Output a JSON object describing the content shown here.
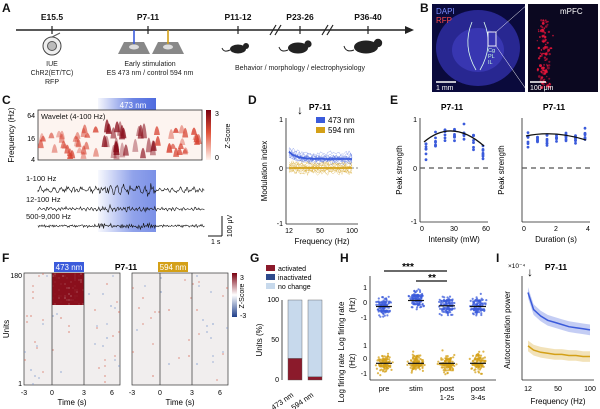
{
  "colors": {
    "blue": "#3b5bdb",
    "gold": "#d4a017",
    "activated": "#8b1a2b",
    "inactivated": "#2e4a8c",
    "nochange": "#c7d9ec",
    "red": "#c0392b",
    "dark": "#222222"
  },
  "panels": [
    "A",
    "B",
    "C",
    "D",
    "E",
    "F",
    "G",
    "H",
    "I"
  ],
  "timeline": {
    "stages": [
      {
        "label": "E15.5",
        "sub": [
          "IUE",
          "ChR2(ET/TC)",
          "RFP"
        ]
      },
      {
        "label": "P7-11",
        "sub": [
          "Early stimulation",
          "ES 473 nm / control 594 nm"
        ]
      },
      {
        "label": "P11-12",
        "sub": []
      },
      {
        "label": "P23-26",
        "sub": [
          "Behavior / morphology / electrophysiology"
        ]
      },
      {
        "label": "P36-40",
        "sub": []
      }
    ]
  },
  "histology": {
    "dapi": "DAPI",
    "rfp": "RFP",
    "mpfc": "mPFC",
    "regions": [
      "Cg",
      "PL",
      "IL"
    ],
    "scale1": "1 mm",
    "scale2": "100 μm"
  },
  "wavelet": {
    "stim_label": "473 nm",
    "inner_label": "Wavelet (4-100 Hz)",
    "ylabel": "Frequency (Hz)",
    "yticks": [
      "64",
      "16",
      "4"
    ],
    "cbar_label": "Z-Score",
    "cbar_ticks": [
      "3",
      "0"
    ],
    "traces": [
      "1-100 Hz",
      "12-100 Hz",
      "500-9,000 Hz"
    ],
    "scale_v": "100 μV",
    "scale_t": "1 s"
  },
  "mod_index": {
    "title": "P7-11",
    "ylabel": "Modulation index",
    "xlabel": "Frequency (Hz)",
    "xticks": [
      "12",
      "50",
      "100"
    ],
    "yticks": [
      "1",
      "0",
      "-1"
    ],
    "legend": [
      "473 nm",
      "594 nm"
    ]
  },
  "peak": {
    "title_left": "P7-11",
    "title_right": "P7-11",
    "ylabel": "Peak strength",
    "xlabel_left": "Intensity (mW)",
    "xlabel_right": "Duration (s)",
    "xticks_left": [
      "0",
      "30",
      "60"
    ],
    "xticks_right": [
      "0",
      "2",
      "4"
    ],
    "yticks": [
      "1",
      "0",
      "-1"
    ]
  },
  "units_raster": {
    "title": "P7-11",
    "label_473": "473 nm",
    "label_594": "594 nm",
    "ylabel": "Units",
    "yticks": [
      "180",
      "1"
    ],
    "xlabel": "Time (s)",
    "xticks": [
      "-3",
      "0",
      "3",
      "6"
    ],
    "cbar_label": "Z-Score",
    "cbar_ticks": [
      "3",
      "-3"
    ]
  },
  "chart_data": [
    {
      "type": "bar",
      "panel": "G",
      "categories": [
        "473 nm",
        "594 nm"
      ],
      "series": [
        {
          "name": "activated",
          "values": [
            27,
            4
          ]
        },
        {
          "name": "inactivated",
          "values": [
            0,
            0
          ]
        },
        {
          "name": "no change",
          "values": [
            73,
            96
          ]
        }
      ],
      "ylabel": "Units (%)",
      "ylim": [
        0,
        100
      ],
      "yticks": [
        "100",
        "50",
        "0"
      ]
    },
    {
      "type": "scatter",
      "panel": "H",
      "categories": [
        "pre",
        "stim",
        "post 1-2s",
        "post 3-4s"
      ],
      "ylabel": "Log firing rate Log firing rate (Hz) (Hz)",
      "ylabel_top": "Log firing rate",
      "ylabel_bottom": "Log firing rate",
      "yunit": "(Hz)",
      "yticks_top": [
        "1",
        "0",
        "-1"
      ],
      "yticks_bottom": [
        "1",
        "0",
        "-1"
      ],
      "series": [
        {
          "name": "473 nm",
          "median": [
            -0.1,
            0.3,
            -0.05,
            -0.1
          ]
        },
        {
          "name": "594 nm",
          "median": [
            -0.15,
            -0.15,
            -0.15,
            -0.15
          ]
        }
      ],
      "sig": [
        "***",
        "**"
      ]
    },
    {
      "type": "line",
      "panel": "I",
      "title": "P7-11",
      "ylabel": "Autocorrelation power",
      "yscale": "×10⁻⁴",
      "xlabel": "Frequency (Hz)",
      "xticks": [
        "12",
        "50",
        "100"
      ],
      "series": [
        {
          "name": "473 nm",
          "x": [
            12,
            20,
            30,
            40,
            50,
            60,
            70,
            80,
            90,
            100
          ],
          "y": [
            5.6,
            4.8,
            4.5,
            4.3,
            4.2,
            4.1,
            4.0,
            3.95,
            3.9,
            3.85
          ]
        },
        {
          "name": "594 nm",
          "x": [
            12,
            20,
            30,
            40,
            50,
            60,
            70,
            80,
            90,
            100
          ],
          "y": [
            3.1,
            2.9,
            2.8,
            2.75,
            2.7,
            2.7,
            2.65,
            2.65,
            2.6,
            2.6
          ]
        }
      ]
    }
  ]
}
